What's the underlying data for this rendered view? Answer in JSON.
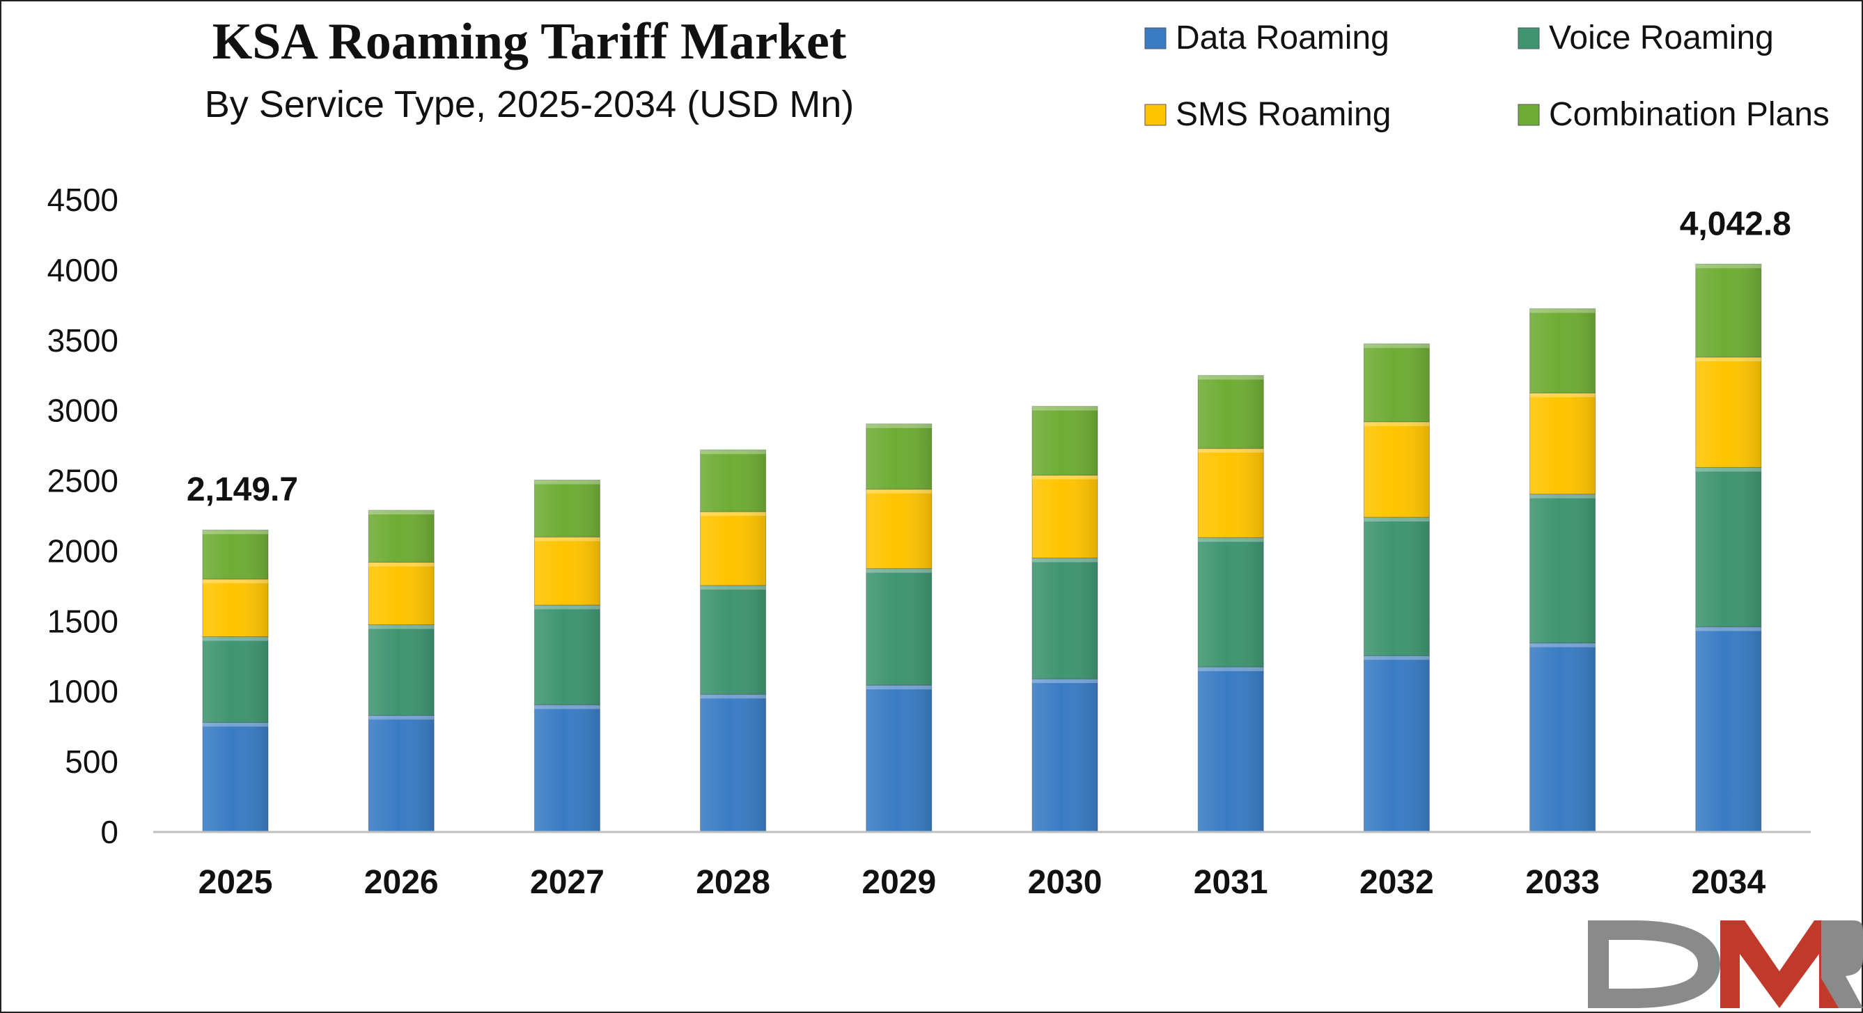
{
  "chart_data": {
    "type": "bar",
    "stacked": true,
    "title": "KSA Roaming Tariff Market",
    "subtitle": "By Service Type, 2025-2034 (USD Mn)",
    "xlabel": "",
    "ylabel": "",
    "ylim": [
      0,
      4500
    ],
    "yticks": [
      0,
      500,
      1000,
      1500,
      2000,
      2500,
      3000,
      3500,
      4000,
      4500
    ],
    "grid": false,
    "legend_position": "top-right",
    "categories": [
      "2025",
      "2026",
      "2027",
      "2028",
      "2029",
      "2030",
      "2031",
      "2032",
      "2033",
      "2034"
    ],
    "series": [
      {
        "name": "Data Roaming",
        "color": "#3a7cc4",
        "values": [
          780,
          830,
          905,
          980,
          1045,
          1090,
          1175,
          1255,
          1345,
          1460
        ]
      },
      {
        "name": "Voice Roaming",
        "color": "#3f9572",
        "values": [
          610,
          645,
          710,
          775,
          830,
          860,
          920,
          985,
          1060,
          1135
        ]
      },
      {
        "name": "SMS Roaming",
        "color": "#ffc400",
        "values": [
          410,
          445,
          485,
          525,
          565,
          590,
          635,
          680,
          720,
          785
        ]
      },
      {
        "name": "Combination Plans",
        "color": "#6fac35",
        "values": [
          349.7,
          370,
          405,
          440,
          465,
          490,
          520,
          555,
          600,
          662.8
        ]
      }
    ],
    "annotations": [
      {
        "category": "2025",
        "text": "2,149.7"
      },
      {
        "category": "2034",
        "text": "4,042.8"
      }
    ]
  },
  "logo": {
    "text": "DMR",
    "colors": [
      "#c0392b",
      "#8a8a8a"
    ]
  }
}
